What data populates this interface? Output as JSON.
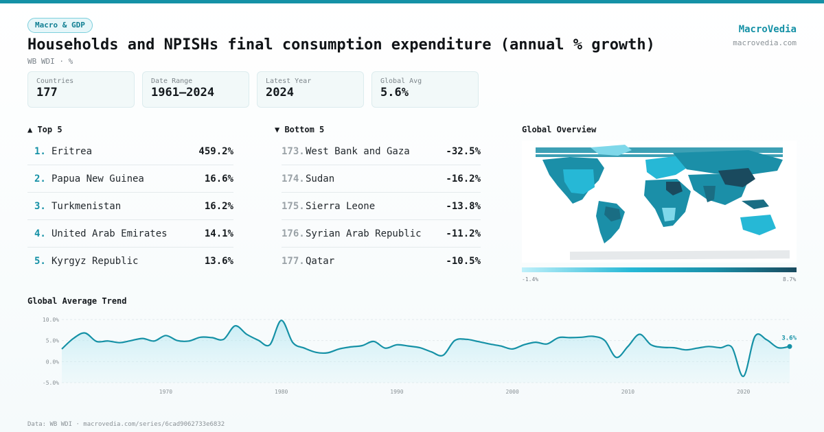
{
  "header": {
    "badge": "Macro & GDP",
    "title": "Households and NPISHs final consumption expenditure (annual % growth)",
    "subtitle": "WB WDI · %",
    "brand_name": "MacroVedia",
    "brand_url": "macrovedia.com"
  },
  "stats": [
    {
      "label": "Countries",
      "value": "177"
    },
    {
      "label": "Date Range",
      "value": "1961–2024"
    },
    {
      "label": "Latest Year",
      "value": "2024"
    },
    {
      "label": "Global Avg",
      "value": "5.6%"
    }
  ],
  "top5": {
    "title": "▲ Top 5",
    "rows": [
      {
        "rank": "1.",
        "name": "Eritrea",
        "value": "459.2%"
      },
      {
        "rank": "2.",
        "name": "Papua New Guinea",
        "value": "16.6%"
      },
      {
        "rank": "3.",
        "name": "Turkmenistan",
        "value": "16.2%"
      },
      {
        "rank": "4.",
        "name": "United Arab Emirates",
        "value": "14.1%"
      },
      {
        "rank": "5.",
        "name": "Kyrgyz Republic",
        "value": "13.6%"
      }
    ]
  },
  "bottom5": {
    "title": "▼ Bottom 5",
    "rows": [
      {
        "rank": "173.",
        "name": "West Bank and Gaza",
        "value": "-32.5%"
      },
      {
        "rank": "174.",
        "name": "Sudan",
        "value": "-16.2%"
      },
      {
        "rank": "175.",
        "name": "Sierra Leone",
        "value": "-13.8%"
      },
      {
        "rank": "176.",
        "name": "Syrian Arab Republic",
        "value": "-11.2%"
      },
      {
        "rank": "177.",
        "name": "Qatar",
        "value": "-10.5%"
      }
    ]
  },
  "map": {
    "title": "Global Overview",
    "legend_min": "-1.4%",
    "legend_max": "8.7%",
    "colors": {
      "low": "#bff0fa",
      "mid": "#26b8d6",
      "high": "#1a4a5e",
      "no_data": "#e6e9eb"
    }
  },
  "chart_data": {
    "type": "area",
    "title": "Global Average Trend",
    "x_ticks": [
      1970,
      1980,
      1990,
      2000,
      2010,
      2020
    ],
    "y_ticks": [
      10.0,
      5.0,
      0.0,
      -5.0
    ],
    "ylim": [
      -5,
      10
    ],
    "xlim": [
      1961,
      2024
    ],
    "last_label": "3.6%",
    "line_color": "#1591a6",
    "x": [
      1961,
      1962,
      1963,
      1964,
      1965,
      1966,
      1967,
      1968,
      1969,
      1970,
      1971,
      1972,
      1973,
      1974,
      1975,
      1976,
      1977,
      1978,
      1979,
      1980,
      1981,
      1982,
      1983,
      1984,
      1985,
      1986,
      1987,
      1988,
      1989,
      1990,
      1991,
      1992,
      1993,
      1994,
      1995,
      1996,
      1997,
      1998,
      1999,
      2000,
      2001,
      2002,
      2003,
      2004,
      2005,
      2006,
      2007,
      2008,
      2009,
      2010,
      2011,
      2012,
      2013,
      2014,
      2015,
      2016,
      2017,
      2018,
      2019,
      2020,
      2021,
      2022,
      2023,
      2024
    ],
    "y": [
      3.0,
      5.5,
      6.8,
      4.8,
      4.9,
      4.5,
      5.0,
      5.5,
      4.9,
      6.2,
      5.0,
      4.9,
      5.8,
      5.7,
      5.3,
      8.5,
      6.5,
      5.1,
      4.0,
      9.8,
      4.5,
      3.2,
      2.2,
      2.1,
      3.0,
      3.5,
      3.8,
      4.8,
      3.2,
      4.0,
      3.7,
      3.3,
      2.3,
      1.5,
      5.0,
      5.3,
      4.8,
      4.2,
      3.7,
      3.0,
      4.0,
      4.6,
      4.2,
      5.7,
      5.7,
      5.8,
      6.0,
      5.0,
      1.0,
      3.6,
      6.5,
      4.0,
      3.4,
      3.3,
      2.8,
      3.2,
      3.6,
      3.3,
      3.4,
      -3.5,
      6.0,
      5.2,
      3.3,
      3.6
    ]
  },
  "footer": "Data: WB WDI · macrovedia.com/series/6cad9062733e6832"
}
